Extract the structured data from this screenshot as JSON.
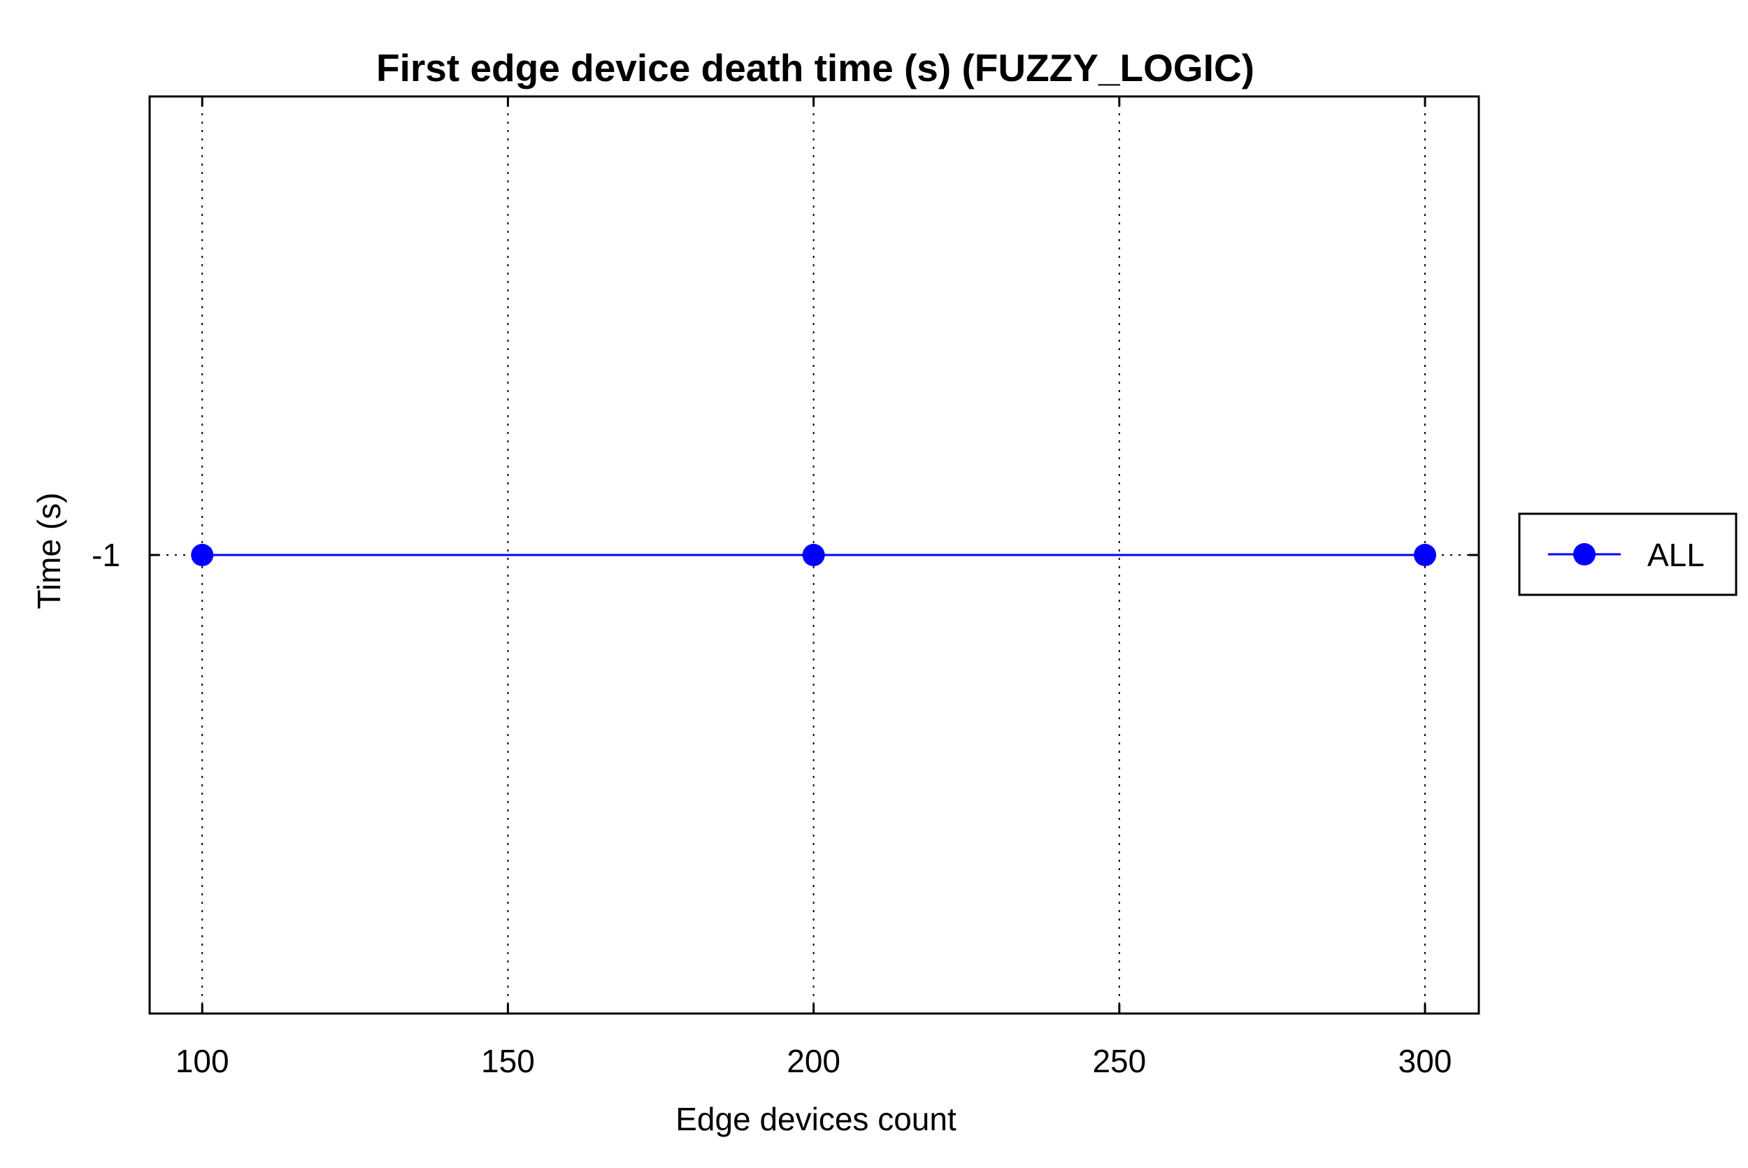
{
  "chart_data": {
    "type": "line",
    "title": "First edge device death time (s) (FUZZY_LOGIC)",
    "xlabel": "Edge devices count",
    "ylabel": "Time (s)",
    "x": [
      100,
      200,
      300
    ],
    "x_ticks": [
      100,
      150,
      200,
      250,
      300
    ],
    "x_tick_labels": [
      "100",
      "150",
      "200",
      "250",
      "300"
    ],
    "xlim": [
      91.4,
      308.8
    ],
    "y_ticks": [
      -1
    ],
    "y_tick_labels": [
      "-1"
    ],
    "ylim": [
      -1.5,
      -0.5
    ],
    "grid": true,
    "legend_position": "outside-right",
    "series": [
      {
        "name": "ALL",
        "values": [
          -1,
          -1,
          -1
        ],
        "color": "#0000ff",
        "marker": "circle"
      }
    ]
  }
}
